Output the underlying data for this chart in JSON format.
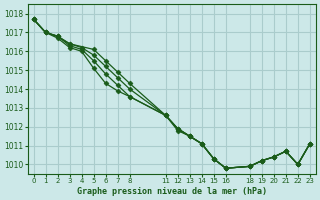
{
  "bg_color": "#cce8e8",
  "grid_color": "#aacccc",
  "line_color": "#1a5c1a",
  "marker_color": "#1a5c1a",
  "text_color": "#1a5c1a",
  "xlabel": "Graphe pression niveau de la mer (hPa)",
  "ylim": [
    1009.5,
    1018.5
  ],
  "yticks": [
    1010,
    1011,
    1012,
    1013,
    1014,
    1015,
    1016,
    1017,
    1018
  ],
  "xticks": [
    0,
    1,
    2,
    3,
    4,
    5,
    6,
    7,
    8,
    11,
    12,
    13,
    14,
    15,
    16,
    18,
    19,
    20,
    21,
    22,
    23
  ],
  "xlim": [
    -0.5,
    23.5
  ],
  "lines": [
    {
      "x": [
        0,
        1,
        2,
        3,
        4,
        5,
        6,
        7,
        8,
        11,
        12,
        13,
        14,
        15,
        16,
        18,
        19,
        20,
        21,
        22,
        23
      ],
      "y": [
        1017.7,
        1017.0,
        1016.7,
        1016.2,
        1016.0,
        1015.1,
        1014.3,
        1013.9,
        1013.6,
        1012.6,
        1011.8,
        1011.5,
        1011.1,
        1010.3,
        1009.8,
        1009.9,
        1010.2,
        1010.4,
        1010.7,
        1010.0,
        1011.1
      ]
    },
    {
      "x": [
        0,
        1,
        2,
        3,
        4,
        5,
        6,
        7,
        8,
        11,
        12,
        13,
        14,
        15,
        16,
        18,
        19,
        20,
        21,
        22,
        23
      ],
      "y": [
        1017.7,
        1017.0,
        1016.8,
        1016.3,
        1016.1,
        1015.5,
        1014.8,
        1014.2,
        1013.6,
        1012.6,
        1011.9,
        1011.5,
        1011.1,
        1010.3,
        1009.8,
        1009.9,
        1010.2,
        1010.4,
        1010.7,
        1010.0,
        1011.1
      ]
    },
    {
      "x": [
        0,
        1,
        2,
        3,
        4,
        5,
        6,
        7,
        8,
        11,
        12,
        13,
        14,
        15,
        16,
        18,
        19,
        20,
        21,
        22,
        23
      ],
      "y": [
        1017.7,
        1017.0,
        1016.8,
        1016.4,
        1016.2,
        1015.8,
        1015.2,
        1014.6,
        1014.0,
        1012.6,
        1011.9,
        1011.5,
        1011.1,
        1010.3,
        1009.8,
        1009.9,
        1010.2,
        1010.4,
        1010.7,
        1010.0,
        1011.1
      ]
    },
    {
      "x": [
        0,
        1,
        2,
        3,
        5,
        6,
        7,
        8,
        11,
        12,
        13,
        14,
        15,
        16,
        18,
        19,
        20,
        21,
        22,
        23
      ],
      "y": [
        1017.7,
        1017.0,
        1016.8,
        1016.4,
        1016.1,
        1015.5,
        1014.9,
        1014.3,
        1012.6,
        1011.9,
        1011.5,
        1011.1,
        1010.3,
        1009.8,
        1009.9,
        1010.2,
        1010.4,
        1010.7,
        1010.0,
        1011.1
      ]
    }
  ]
}
